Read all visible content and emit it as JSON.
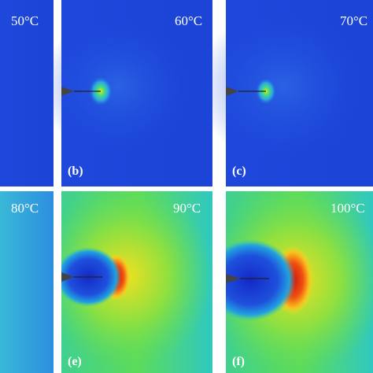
{
  "panels": [
    {
      "temperature": "50°C"
    },
    {
      "temperature": "60°C",
      "tag": "(b)"
    },
    {
      "temperature": "70°C",
      "tag": "(c)"
    },
    {
      "temperature": "80°C"
    },
    {
      "temperature": "90°C",
      "tag": "(e)"
    },
    {
      "temperature": "100°C",
      "tag": "(f)"
    }
  ]
}
